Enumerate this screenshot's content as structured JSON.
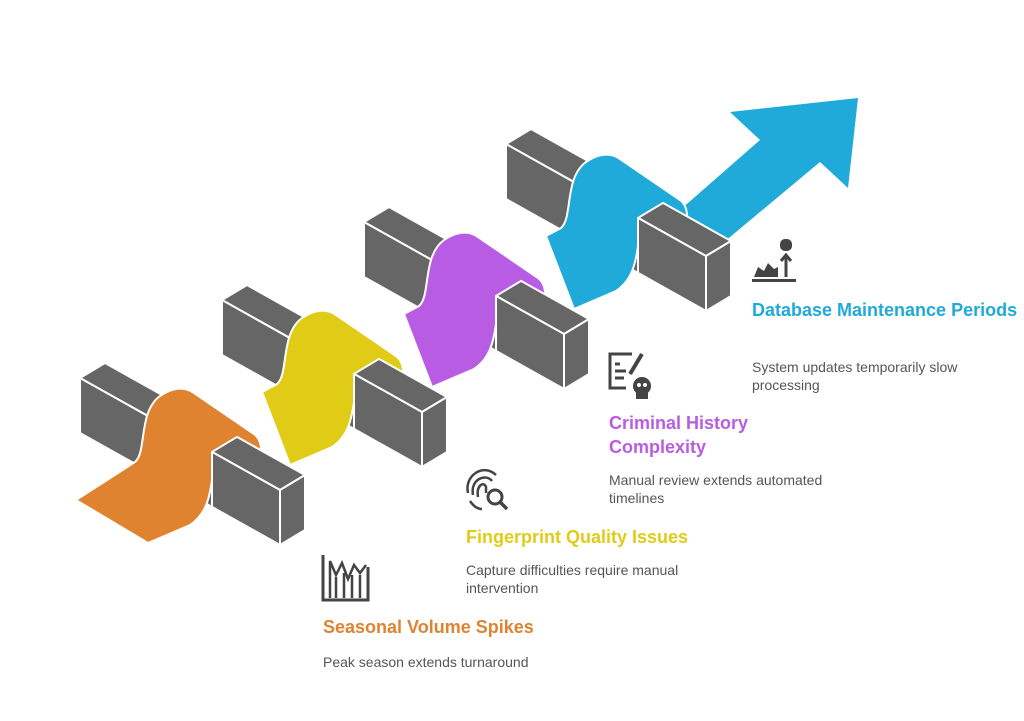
{
  "colors": {
    "seasonal": "#E08330",
    "fingerprint": "#E0CC17",
    "criminal": "#B85CE3",
    "database": "#1FAAD9",
    "block": "#666666",
    "text": "#555555"
  },
  "steps": [
    {
      "title": "Seasonal Volume Spikes",
      "description": "Peak season extends turnaround",
      "icon": "bar-chart-spikes-icon"
    },
    {
      "title": "Fingerprint Quality Issues",
      "description": "Capture difficulties require manual intervention",
      "icon": "fingerprint-search-icon"
    },
    {
      "title": "Criminal History Complexity",
      "description": "Manual review extends automated timelines",
      "icon": "document-skull-icon"
    },
    {
      "title": "Database Maintenance Periods",
      "description": "System updates temporarily slow processing",
      "icon": "database-gears-icon"
    }
  ]
}
